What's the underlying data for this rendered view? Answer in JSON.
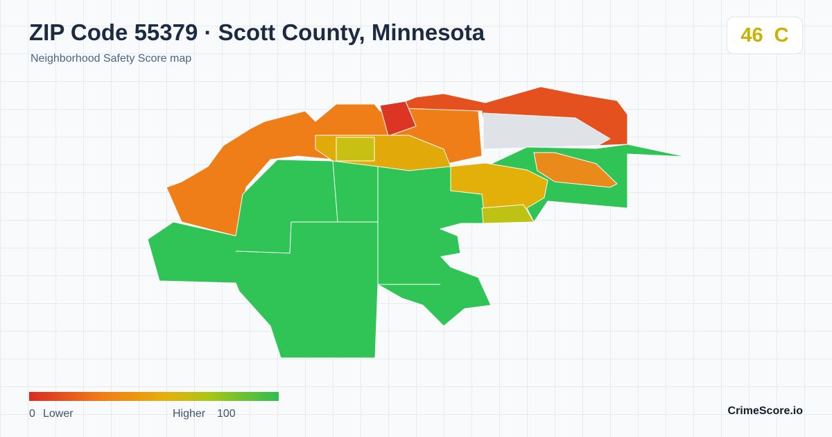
{
  "header": {
    "title": "ZIP Code 55379 · Scott County, Minnesota",
    "subtitle": "Neighborhood Safety Score map",
    "score": 46,
    "grade": "C"
  },
  "legend": {
    "min": 0,
    "low_label": "Lower",
    "high_label": "Higher",
    "max": 100
  },
  "footer": {
    "brand": "CrimeScore.io"
  }
}
